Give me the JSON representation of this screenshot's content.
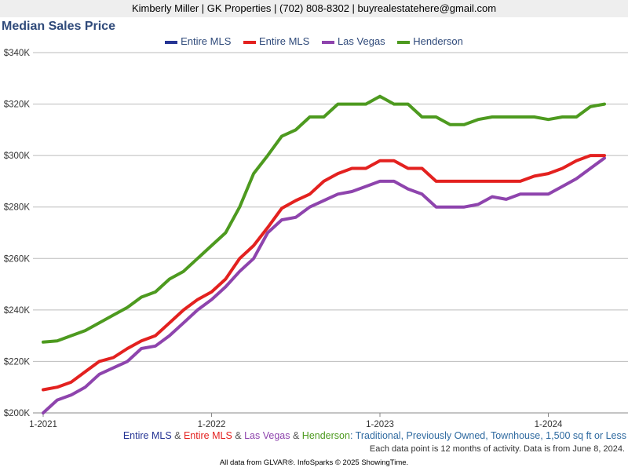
{
  "header": {
    "contact": "Kimberly Miller | GK Properties | (702) 808-8302 | buyrealestatehere@gmail.com",
    "title": "Median Sales Price"
  },
  "legend": [
    {
      "label": "Entire MLS",
      "color": "#253494"
    },
    {
      "label": "Entire MLS",
      "color": "#e3211f"
    },
    {
      "label": "Las Vegas",
      "color": "#8e44ad"
    },
    {
      "label": "Henderson",
      "color": "#4d9a1f"
    }
  ],
  "subtitle": {
    "areas": [
      {
        "text": "Entire MLS",
        "color": "#253494"
      },
      {
        "text": " & ",
        "color": "#555555"
      },
      {
        "text": "Entire MLS",
        "color": "#e3211f"
      },
      {
        "text": " & ",
        "color": "#555555"
      },
      {
        "text": "Las Vegas",
        "color": "#8e44ad"
      },
      {
        "text": " & ",
        "color": "#555555"
      },
      {
        "text": "Henderson",
        "color": "#4d9a1f"
      }
    ],
    "criteria": ": Traditional, Previously Owned, Townhouse, 1,500 sq ft or Less",
    "criteria_color": "#2f6aa0"
  },
  "note": "Each data point is 12 months of activity. Data is from June 8, 2024.",
  "footer": "All data from GLVAR®. InfoSparks © 2025 ShowingTime.",
  "chart_data": {
    "type": "line",
    "title": "Median Sales Price",
    "ylim": [
      200000,
      340000
    ],
    "y_ticks": [
      {
        "value": 200000,
        "label": "$200K"
      },
      {
        "value": 220000,
        "label": "$220K"
      },
      {
        "value": 240000,
        "label": "$240K"
      },
      {
        "value": 260000,
        "label": "$260K"
      },
      {
        "value": 280000,
        "label": "$280K"
      },
      {
        "value": 300000,
        "label": "$300K"
      },
      {
        "value": 320000,
        "label": "$320K"
      },
      {
        "value": 340000,
        "label": "$340K"
      }
    ],
    "x_ticks": [
      {
        "index": 0,
        "label": "1-2021"
      },
      {
        "index": 12,
        "label": "1-2022"
      },
      {
        "index": 24,
        "label": "1-2023"
      },
      {
        "index": 36,
        "label": "1-2024"
      }
    ],
    "x": [
      "1-2021",
      "2-2021",
      "3-2021",
      "4-2021",
      "5-2021",
      "6-2021",
      "7-2021",
      "8-2021",
      "9-2021",
      "10-2021",
      "11-2021",
      "12-2021",
      "1-2022",
      "2-2022",
      "3-2022",
      "4-2022",
      "5-2022",
      "6-2022",
      "7-2022",
      "8-2022",
      "9-2022",
      "10-2022",
      "11-2022",
      "12-2022",
      "1-2023",
      "2-2023",
      "3-2023",
      "4-2023",
      "5-2023",
      "6-2023",
      "7-2023",
      "8-2023",
      "9-2023",
      "10-2023",
      "11-2023",
      "12-2023",
      "1-2024",
      "2-2024",
      "3-2024",
      "4-2024",
      "5-2024"
    ],
    "grid": true,
    "series": [
      {
        "name": "Henderson",
        "color": "#4d9a1f",
        "values": [
          227500,
          228000,
          230000,
          232000,
          235000,
          238000,
          241000,
          245000,
          247000,
          252000,
          255000,
          260000,
          265000,
          270000,
          280000,
          293000,
          300000,
          307500,
          310000,
          315000,
          315000,
          320000,
          320000,
          320000,
          323000,
          320000,
          320000,
          315000,
          315000,
          312000,
          312000,
          314000,
          315000,
          315000,
          315000,
          315000,
          314000,
          315000,
          315000,
          319000,
          320000
        ]
      },
      {
        "name": "Las Vegas",
        "color": "#8e44ad",
        "values": [
          200000,
          205000,
          207000,
          210000,
          215000,
          217500,
          220000,
          225000,
          226000,
          230000,
          235000,
          240000,
          244000,
          249000,
          255000,
          260000,
          270000,
          275000,
          276000,
          280000,
          282500,
          285000,
          286000,
          288000,
          290000,
          290000,
          287000,
          285000,
          280000,
          280000,
          280000,
          281000,
          284000,
          283000,
          285000,
          285000,
          285000,
          288000,
          291000,
          295000,
          299000
        ]
      },
      {
        "name": "Entire MLS",
        "color": "#e3211f",
        "values": [
          209000,
          210000,
          212000,
          216000,
          220000,
          221500,
          225000,
          228000,
          230000,
          235000,
          240000,
          244000,
          247000,
          252000,
          260000,
          265000,
          272000,
          279500,
          282500,
          285000,
          290000,
          293000,
          295000,
          295000,
          298000,
          298000,
          295000,
          295000,
          290000,
          290000,
          290000,
          290000,
          290000,
          290000,
          290000,
          292000,
          293000,
          295000,
          298000,
          300000,
          300000
        ]
      }
    ]
  }
}
